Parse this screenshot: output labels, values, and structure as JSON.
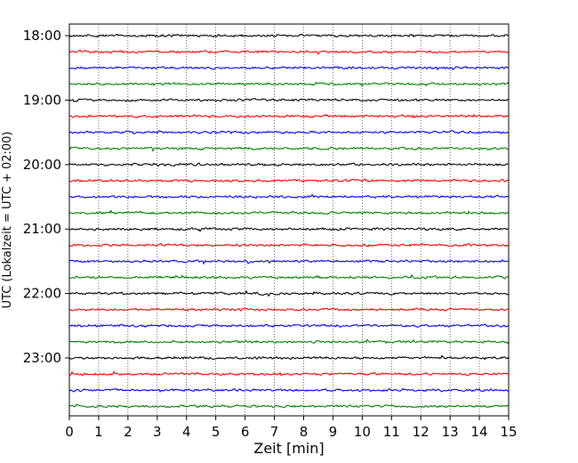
{
  "chart_data": {
    "type": "line",
    "xlabel": "Zeit  [min]",
    "ylabel": "UTC (Lokalzeit = UTC + 02:00)",
    "xlim": [
      0,
      15
    ],
    "x_ticks": [
      "0",
      "1",
      "2",
      "3",
      "4",
      "5",
      "6",
      "7",
      "8",
      "9",
      "10",
      "11",
      "12",
      "13",
      "14",
      "15"
    ],
    "y_ticks": [
      "18:00",
      "19:00",
      "20:00",
      "21:00",
      "22:00",
      "23:00"
    ],
    "grid": "vertical dotted lines at each minute",
    "trace_colors": [
      "#000000",
      "#ff0000",
      "#0000ff",
      "#007f00"
    ],
    "traces_per_hour": 4,
    "minutes_per_trace": 15,
    "traces": [
      {
        "start": "18:00",
        "color": "#000000"
      },
      {
        "start": "18:15",
        "color": "#ff0000"
      },
      {
        "start": "18:30",
        "color": "#0000ff"
      },
      {
        "start": "18:45",
        "color": "#007f00"
      },
      {
        "start": "19:00",
        "color": "#000000"
      },
      {
        "start": "19:15",
        "color": "#ff0000"
      },
      {
        "start": "19:30",
        "color": "#0000ff"
      },
      {
        "start": "19:45",
        "color": "#007f00"
      },
      {
        "start": "20:00",
        "color": "#000000"
      },
      {
        "start": "20:15",
        "color": "#ff0000"
      },
      {
        "start": "20:30",
        "color": "#0000ff"
      },
      {
        "start": "20:45",
        "color": "#007f00"
      },
      {
        "start": "21:00",
        "color": "#000000"
      },
      {
        "start": "21:15",
        "color": "#ff0000"
      },
      {
        "start": "21:30",
        "color": "#0000ff"
      },
      {
        "start": "21:45",
        "color": "#007f00"
      },
      {
        "start": "22:00",
        "color": "#000000"
      },
      {
        "start": "22:15",
        "color": "#ff0000"
      },
      {
        "start": "22:30",
        "color": "#0000ff"
      },
      {
        "start": "22:45",
        "color": "#007f00"
      },
      {
        "start": "23:00",
        "color": "#000000"
      },
      {
        "start": "23:15",
        "color": "#ff0000"
      },
      {
        "start": "23:30",
        "color": "#0000ff"
      },
      {
        "start": "23:45",
        "color": "#007f00"
      }
    ]
  }
}
